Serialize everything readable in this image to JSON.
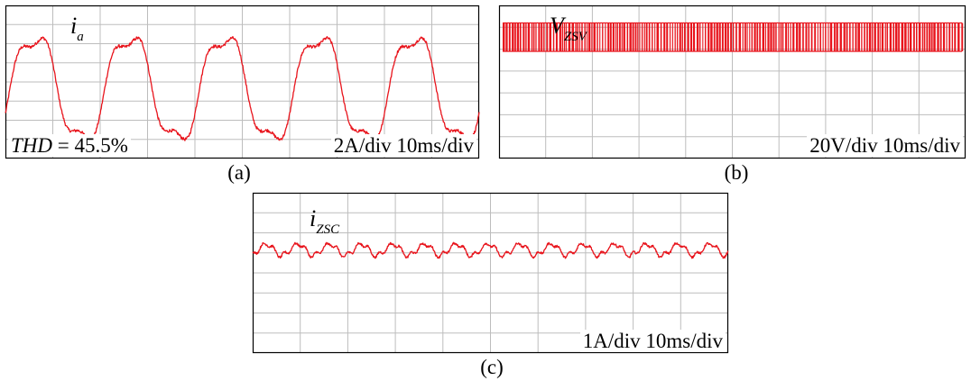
{
  "colors": {
    "trace": "#e8141c",
    "grid": "#bdbdbd",
    "frame": "#000000",
    "background": "#ffffff"
  },
  "panels": {
    "a": {
      "caption": "(a)",
      "label_main": "i",
      "label_sub": "a",
      "thd_var": "THD",
      "thd_value": "= 45.5%",
      "scale": "2A/div 10ms/div"
    },
    "b": {
      "caption": "(b)",
      "label_main": "V",
      "label_sub": "ZSV",
      "scale": "20V/div 10ms/div"
    },
    "c": {
      "caption": "(c)",
      "label_main": "i",
      "label_sub": "ZSC",
      "scale": "1A/div 10ms/div"
    }
  },
  "chart_data": [
    {
      "type": "line",
      "panel": "a",
      "signal": "i_a",
      "units_per_division": {
        "y": "2 A",
        "x": "10 ms"
      },
      "grid": true,
      "divisions": {
        "x": 10,
        "y": 8
      },
      "series": [
        {
          "waveform": "sinusoid with switching ripple",
          "cycles_shown": 5,
          "period_ms": 20,
          "amplitude_div": 2.8,
          "offset_div": 0.35,
          "ripple_div": 0.08,
          "harmonic_3rd_ratio": 0.2
        }
      ],
      "annotation": "THD = 45.5%"
    },
    {
      "type": "line",
      "panel": "b",
      "signal": "V_ZSV",
      "units_per_division": {
        "y": "20 V",
        "x": "10 ms"
      },
      "grid": true,
      "divisions": {
        "x": 10,
        "y": 7
      },
      "series": [
        {
          "waveform": "PWM pulse train",
          "low_level_div": 4.9,
          "high_level_div": 6.2,
          "density": "dense"
        }
      ]
    },
    {
      "type": "line",
      "panel": "c",
      "signal": "i_ZSC",
      "units_per_division": {
        "y": "1 A",
        "x": "10 ms"
      },
      "grid": true,
      "divisions": {
        "x": 10,
        "y": 8
      },
      "series": [
        {
          "waveform": "triangular ripple",
          "cycles_shown": 15,
          "period_ms": 6.67,
          "amplitude_div": 0.35,
          "offset_div": 5.15,
          "ripple_div": 0.05
        }
      ]
    }
  ]
}
